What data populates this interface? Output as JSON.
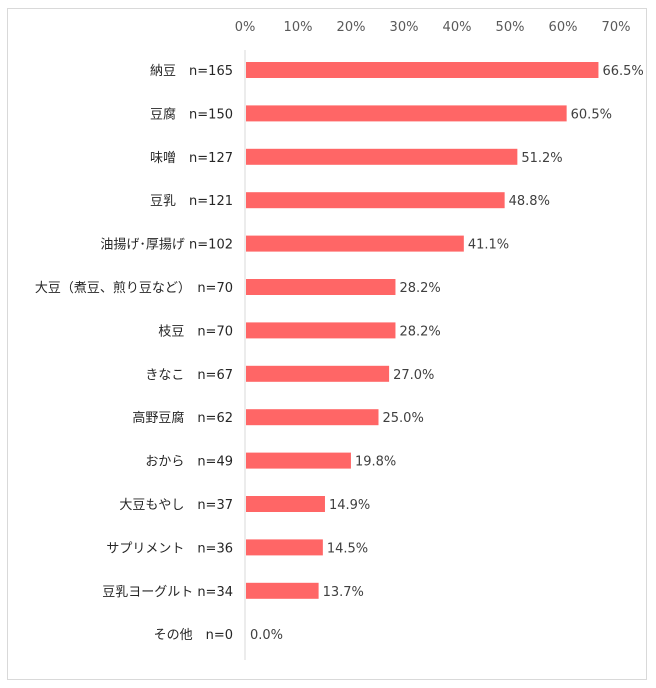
{
  "chart_data": {
    "type": "bar",
    "orientation": "horizontal",
    "categories": [
      "納豆　n=165",
      "豆腐　n=150",
      "味噌　n=127",
      "豆乳　n=121",
      "油揚げ･厚揚げ n=102",
      "大豆（煮豆、煎り豆など）　n=70",
      "枝豆　n=70",
      "きなこ　n=67",
      "高野豆腐　n=62",
      "おから　n=49",
      "大豆もやし　n=37",
      "サプリメント　n=36",
      "豆乳ヨーグルト n=34",
      "その他　n=0"
    ],
    "values": [
      66.5,
      60.5,
      51.2,
      48.8,
      41.1,
      28.2,
      28.2,
      27.0,
      25.0,
      19.8,
      14.9,
      14.5,
      13.7,
      0.0
    ],
    "data_labels": [
      "66.5%",
      "60.5%",
      "51.2%",
      "48.8%",
      "41.1%",
      "28.2%",
      "28.2%",
      "27.0%",
      "25.0%",
      "19.8%",
      "14.9%",
      "14.5%",
      "13.7%",
      "0.0%"
    ],
    "xlim": [
      0,
      70
    ],
    "x_ticks": [
      "0%",
      "10%",
      "20%",
      "30%",
      "40%",
      "50%",
      "60%",
      "70%"
    ],
    "axis_position": "top",
    "grid": false,
    "bar_color": "#ff6666"
  }
}
